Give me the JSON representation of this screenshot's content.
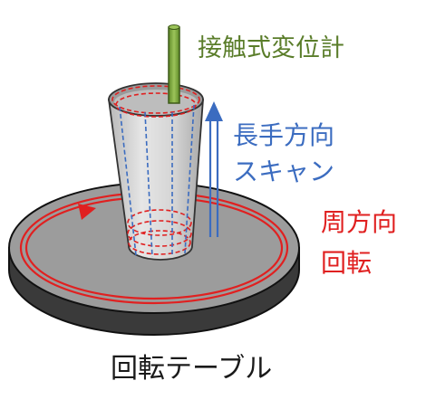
{
  "labels": {
    "probe": "接触式変位計",
    "scan_line1": "長手方向",
    "scan_line2": "スキャン",
    "circ_line1": "周方向",
    "circ_line2": "回転",
    "table": "回転テーブル"
  },
  "colors": {
    "probe_text": "#5a7d2a",
    "probe_rod": "#7da03a",
    "scan": "#3b6cc0",
    "rotation": "#e02020",
    "text_dark": "#1a1a1a",
    "table_top": "#9a9a9a",
    "table_side": "#3a3a3a",
    "cup": "#d0d0d0"
  },
  "icons": {
    "scan_arrow": "up-arrow-icon",
    "rotation_arrow": "right-arrow-icon"
  }
}
